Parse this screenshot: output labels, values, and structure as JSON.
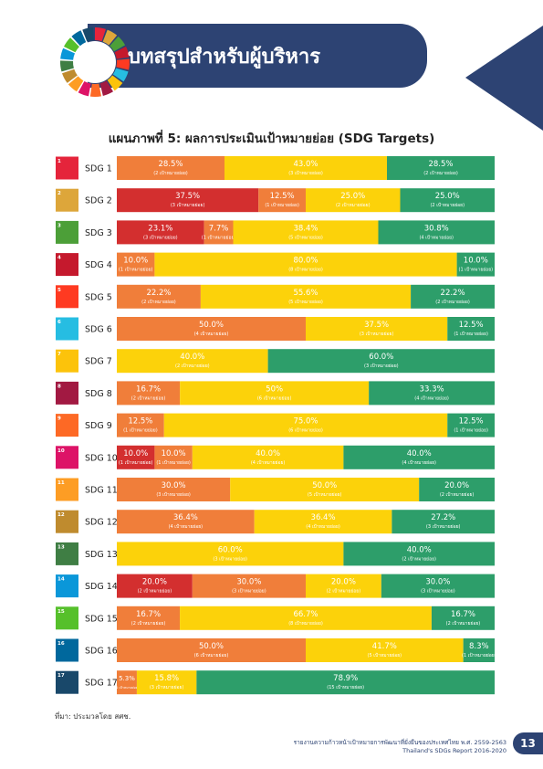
{
  "header": {
    "title": "บทสรุปสำหรับผู้บริหาร"
  },
  "chart_data": {
    "type": "bar",
    "stacked": true,
    "orientation": "horizontal",
    "title": "แผนภาพที่ 5: ผลการประเมินเป้าหมายย่อย (SDG Targets)",
    "unit": "%",
    "xlim": [
      0,
      100
    ],
    "colors": {
      "red": "#d32f2f",
      "orange": "#f07e3a",
      "yellow": "#fcd20a",
      "green": "#2d9e6a"
    },
    "rows": [
      {
        "label": "SDG 1",
        "goal": 1,
        "icon_color": "#e5243b",
        "segments": [
          {
            "color": "orange",
            "value": 28.5,
            "text": "28.5%",
            "sub": "(2 เป้าหมายย่อย)"
          },
          {
            "color": "yellow",
            "value": 43.0,
            "text": "43.0%",
            "sub": "(3 เป้าหมายย่อย)"
          },
          {
            "color": "green",
            "value": 28.5,
            "text": "28.5%",
            "sub": "(2 เป้าหมายย่อย)"
          }
        ]
      },
      {
        "label": "SDG 2",
        "goal": 2,
        "icon_color": "#dda63a",
        "segments": [
          {
            "color": "red",
            "value": 37.5,
            "text": "37.5%",
            "sub": "(3 เป้าหมายย่อย)"
          },
          {
            "color": "orange",
            "value": 12.5,
            "text": "12.5%",
            "sub": "(1 เป้าหมายย่อย)"
          },
          {
            "color": "yellow",
            "value": 25.0,
            "text": "25.0%",
            "sub": "(2 เป้าหมายย่อย)"
          },
          {
            "color": "green",
            "value": 25.0,
            "text": "25.0%",
            "sub": "(2 เป้าหมายย่อย)"
          }
        ]
      },
      {
        "label": "SDG 3",
        "goal": 3,
        "icon_color": "#4c9f38",
        "segments": [
          {
            "color": "red",
            "value": 23.1,
            "text": "23.1%",
            "sub": "(3 เป้าหมายย่อย)"
          },
          {
            "color": "orange",
            "value": 7.7,
            "text": "7.7%",
            "sub": "(1 เป้าหมายย่อย)"
          },
          {
            "color": "yellow",
            "value": 38.4,
            "text": "38.4%",
            "sub": "(5 เป้าหมายย่อย)"
          },
          {
            "color": "green",
            "value": 30.8,
            "text": "30.8%",
            "sub": "(4 เป้าหมายย่อย)"
          }
        ]
      },
      {
        "label": "SDG 4",
        "goal": 4,
        "icon_color": "#c5192d",
        "segments": [
          {
            "color": "orange",
            "value": 10.0,
            "text": "10.0%",
            "sub": "(1 เป้าหมายย่อย)"
          },
          {
            "color": "yellow",
            "value": 80.0,
            "text": "80.0%",
            "sub": "(8 เป้าหมายย่อย)"
          },
          {
            "color": "green",
            "value": 10.0,
            "text": "10.0%",
            "sub": "(1 เป้าหมายย่อย)"
          }
        ]
      },
      {
        "label": "SDG 5",
        "goal": 5,
        "icon_color": "#ff3a21",
        "segments": [
          {
            "color": "orange",
            "value": 22.2,
            "text": "22.2%",
            "sub": "(2 เป้าหมายย่อย)"
          },
          {
            "color": "yellow",
            "value": 55.6,
            "text": "55.6%",
            "sub": "(5 เป้าหมายย่อย)"
          },
          {
            "color": "green",
            "value": 22.2,
            "text": "22.2%",
            "sub": "(2 เป้าหมายย่อย)"
          }
        ]
      },
      {
        "label": "SDG 6",
        "goal": 6,
        "icon_color": "#26bde2",
        "segments": [
          {
            "color": "orange",
            "value": 50.0,
            "text": "50.0%",
            "sub": "(4 เป้าหมายย่อย)"
          },
          {
            "color": "yellow",
            "value": 37.5,
            "text": "37.5%",
            "sub": "(3 เป้าหมายย่อย)"
          },
          {
            "color": "green",
            "value": 12.5,
            "text": "12.5%",
            "sub": "(1 เป้าหมายย่อย)"
          }
        ]
      },
      {
        "label": "SDG 7",
        "goal": 7,
        "icon_color": "#fcc30b",
        "segments": [
          {
            "color": "yellow",
            "value": 40.0,
            "text": "40.0%",
            "sub": "(2 เป้าหมายย่อย)"
          },
          {
            "color": "green",
            "value": 60.0,
            "text": "60.0%",
            "sub": "(3 เป้าหมายย่อย)"
          }
        ]
      },
      {
        "label": "SDG 8",
        "goal": 8,
        "icon_color": "#a21942",
        "segments": [
          {
            "color": "orange",
            "value": 16.7,
            "text": "16.7%",
            "sub": "(2 เป้าหมายย่อย)"
          },
          {
            "color": "yellow",
            "value": 50,
            "text": "50%",
            "sub": "(6 เป้าหมายย่อย)"
          },
          {
            "color": "green",
            "value": 33.3,
            "text": "33.3%",
            "sub": "(4 เป้าหมายย่อย)"
          }
        ]
      },
      {
        "label": "SDG 9",
        "goal": 9,
        "icon_color": "#fd6925",
        "segments": [
          {
            "color": "orange",
            "value": 12.5,
            "text": "12.5%",
            "sub": "(1 เป้าหมายย่อย)"
          },
          {
            "color": "yellow",
            "value": 75.0,
            "text": "75.0%",
            "sub": "(6 เป้าหมายย่อย)"
          },
          {
            "color": "green",
            "value": 12.5,
            "text": "12.5%",
            "sub": "(1 เป้าหมายย่อย)"
          }
        ]
      },
      {
        "label": "SDG 10",
        "goal": 10,
        "icon_color": "#dd1367",
        "segments": [
          {
            "color": "red",
            "value": 10.0,
            "text": "10.0%",
            "sub": "(1 เป้าหมายย่อย)"
          },
          {
            "color": "orange",
            "value": 10.0,
            "text": "10.0%",
            "sub": "(1 เป้าหมายย่อย)"
          },
          {
            "color": "yellow",
            "value": 40.0,
            "text": "40.0%",
            "sub": "(4 เป้าหมายย่อย)"
          },
          {
            "color": "green",
            "value": 40.0,
            "text": "40.0%",
            "sub": "(4 เป้าหมายย่อย)"
          }
        ]
      },
      {
        "label": "SDG 11",
        "goal": 11,
        "icon_color": "#fd9d24",
        "segments": [
          {
            "color": "orange",
            "value": 30.0,
            "text": "30.0%",
            "sub": "(3 เป้าหมายย่อย)"
          },
          {
            "color": "yellow",
            "value": 50.0,
            "text": "50.0%",
            "sub": "(5 เป้าหมายย่อย)"
          },
          {
            "color": "green",
            "value": 20.0,
            "text": "20.0%",
            "sub": "(2 เป้าหมายย่อย)"
          }
        ]
      },
      {
        "label": "SDG 12",
        "goal": 12,
        "icon_color": "#bf8b2e",
        "segments": [
          {
            "color": "orange",
            "value": 36.4,
            "text": "36.4%",
            "sub": "(4 เป้าหมายย่อย)"
          },
          {
            "color": "yellow",
            "value": 36.4,
            "text": "36.4%",
            "sub": "(4 เป้าหมายย่อย)"
          },
          {
            "color": "green",
            "value": 27.2,
            "text": "27.2%",
            "sub": "(3 เป้าหมายย่อย)"
          }
        ]
      },
      {
        "label": "SDG 13",
        "goal": 13,
        "icon_color": "#3f7e44",
        "segments": [
          {
            "color": "yellow",
            "value": 60.0,
            "text": "60.0%",
            "sub": "(3 เป้าหมายย่อย)"
          },
          {
            "color": "green",
            "value": 40.0,
            "text": "40.0%",
            "sub": "(2 เป้าหมายย่อย)"
          }
        ]
      },
      {
        "label": "SDG 14",
        "goal": 14,
        "icon_color": "#0a97d9",
        "segments": [
          {
            "color": "red",
            "value": 20.0,
            "text": "20.0%",
            "sub": "(2 เป้าหมายย่อย)"
          },
          {
            "color": "orange",
            "value": 30.0,
            "text": "30.0%",
            "sub": "(3 เป้าหมายย่อย)"
          },
          {
            "color": "yellow",
            "value": 20.0,
            "text": "20.0%",
            "sub": "(2 เป้าหมายย่อย)"
          },
          {
            "color": "green",
            "value": 30.0,
            "text": "30.0%",
            "sub": "(3 เป้าหมายย่อย)"
          }
        ]
      },
      {
        "label": "SDG 15",
        "goal": 15,
        "icon_color": "#56c02b",
        "segments": [
          {
            "color": "orange",
            "value": 16.7,
            "text": "16.7%",
            "sub": "(2 เป้าหมายย่อย)"
          },
          {
            "color": "yellow",
            "value": 66.7,
            "text": "66.7%",
            "sub": "(8 เป้าหมายย่อย)"
          },
          {
            "color": "green",
            "value": 16.7,
            "text": "16.7%",
            "sub": "(2 เป้าหมายย่อย)"
          }
        ]
      },
      {
        "label": "SDG 16",
        "goal": 16,
        "icon_color": "#00689d",
        "segments": [
          {
            "color": "orange",
            "value": 50.0,
            "text": "50.0%",
            "sub": "(6 เป้าหมายย่อย)"
          },
          {
            "color": "yellow",
            "value": 41.7,
            "text": "41.7%",
            "sub": "(5 เป้าหมายย่อย)"
          },
          {
            "color": "green",
            "value": 8.3,
            "text": "8.3%",
            "sub": "(1 เป้าหมายย่อย)"
          }
        ]
      },
      {
        "label": "SDG 17",
        "goal": 17,
        "icon_color": "#19486a",
        "segments": [
          {
            "color": "orange",
            "value": 5.3,
            "text": "5.3%",
            "sub": "(1 เป้าหมายย่อย)"
          },
          {
            "color": "yellow",
            "value": 15.8,
            "text": "15.8%",
            "sub": "(3 เป้าหมายย่อย)"
          },
          {
            "color": "green",
            "value": 78.9,
            "text": "78.9%",
            "sub": "(15 เป้าหมายย่อย)"
          }
        ]
      }
    ]
  },
  "source": "ที่มา: ประมวลโดย สศช.",
  "footer": {
    "line1": "รายงานความก้าวหน้าเป้าหมายการพัฒนาที่ยั่งยืนของประเทศไทย พ.ศ. 2559-2563",
    "line2": "Thailand's SDGs Report 2016-2020",
    "page": "13"
  }
}
